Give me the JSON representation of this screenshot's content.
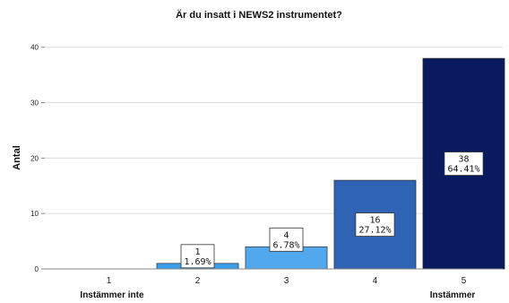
{
  "chart_data": {
    "type": "bar",
    "title": "Är du insatt i NEWS2 instrumentet?",
    "ylabel": "Antal",
    "xlabel": "",
    "categories": [
      "1",
      "2",
      "3",
      "4",
      "5"
    ],
    "values": [
      0,
      1,
      4,
      16,
      38
    ],
    "data_labels": [
      null,
      {
        "count": "1",
        "percent": "1.69%"
      },
      {
        "count": "4",
        "percent": "6.78%"
      },
      {
        "count": "16",
        "percent": "27.12%"
      },
      {
        "count": "38",
        "percent": "64.41%"
      }
    ],
    "bar_colors": [
      "#5aa9ec",
      "#3b9ee8",
      "#52a8ec",
      "#2f63b4",
      "#0a1a5e"
    ],
    "ylim": [
      0,
      44
    ],
    "yticks": [
      "0",
      "10",
      "20",
      "30",
      "40"
    ],
    "x_anchor_labels": {
      "left": "Instämmer inte",
      "right": "Instämmer"
    },
    "grid": true,
    "grid_color": "#dcdcdc",
    "legend": "none"
  }
}
